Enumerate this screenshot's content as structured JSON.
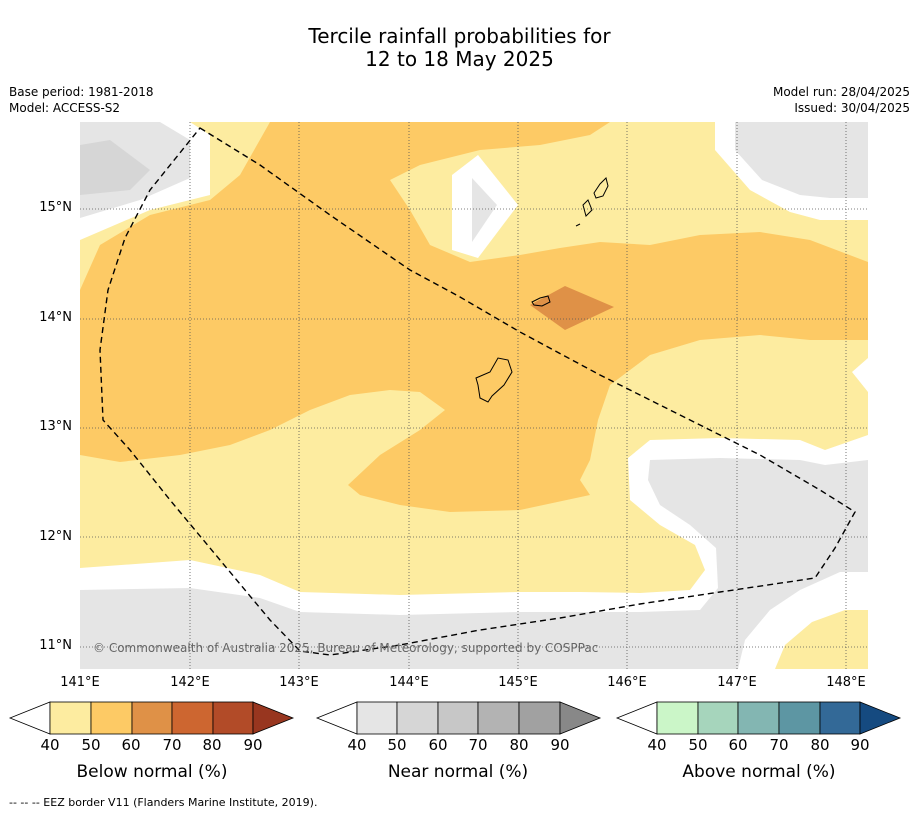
{
  "title_line1": "Tercile rainfall probabilities for",
  "title_line2": "12 to 18 May 2025",
  "base_period": "Base period: 1981-2018",
  "model": "Model: ACCESS-S2",
  "model_run": "Model run: 28/04/2025",
  "issued": "Issued: 30/04/2025",
  "lat_labels": [
    "15°N",
    "14°N",
    "13°N",
    "12°N",
    "11°N"
  ],
  "lon_labels": [
    "141°E",
    "142°E",
    "143°E",
    "144°E",
    "145°E",
    "146°E",
    "147°E",
    "148°E"
  ],
  "copyright": "© Commonwealth of Australia 2025, Bureau of Meteorology, supported by COSPPac",
  "colorbars": {
    "ticks": [
      "40",
      "50",
      "60",
      "70",
      "80",
      "90"
    ],
    "below": {
      "label": "Below normal (%)",
      "colors": [
        "#fdeca0",
        "#fdca65",
        "#df9147",
        "#cd6630",
        "#b24b28",
        "#98361f"
      ]
    },
    "near": {
      "label": "Near normal (%)",
      "colors": [
        "#e5e5e5",
        "#d6d6d6",
        "#c7c7c7",
        "#b3b3b3",
        "#a1a1a1",
        "#888888"
      ]
    },
    "above": {
      "label": "Above normal (%)",
      "colors": [
        "#cbf6c8",
        "#a6d5bc",
        "#83b6b2",
        "#5d96a3",
        "#336997",
        "#154a80"
      ]
    }
  },
  "footnote": "-- -- -- EEZ border V11 (Flanders Marine Institute, 2019)."
}
